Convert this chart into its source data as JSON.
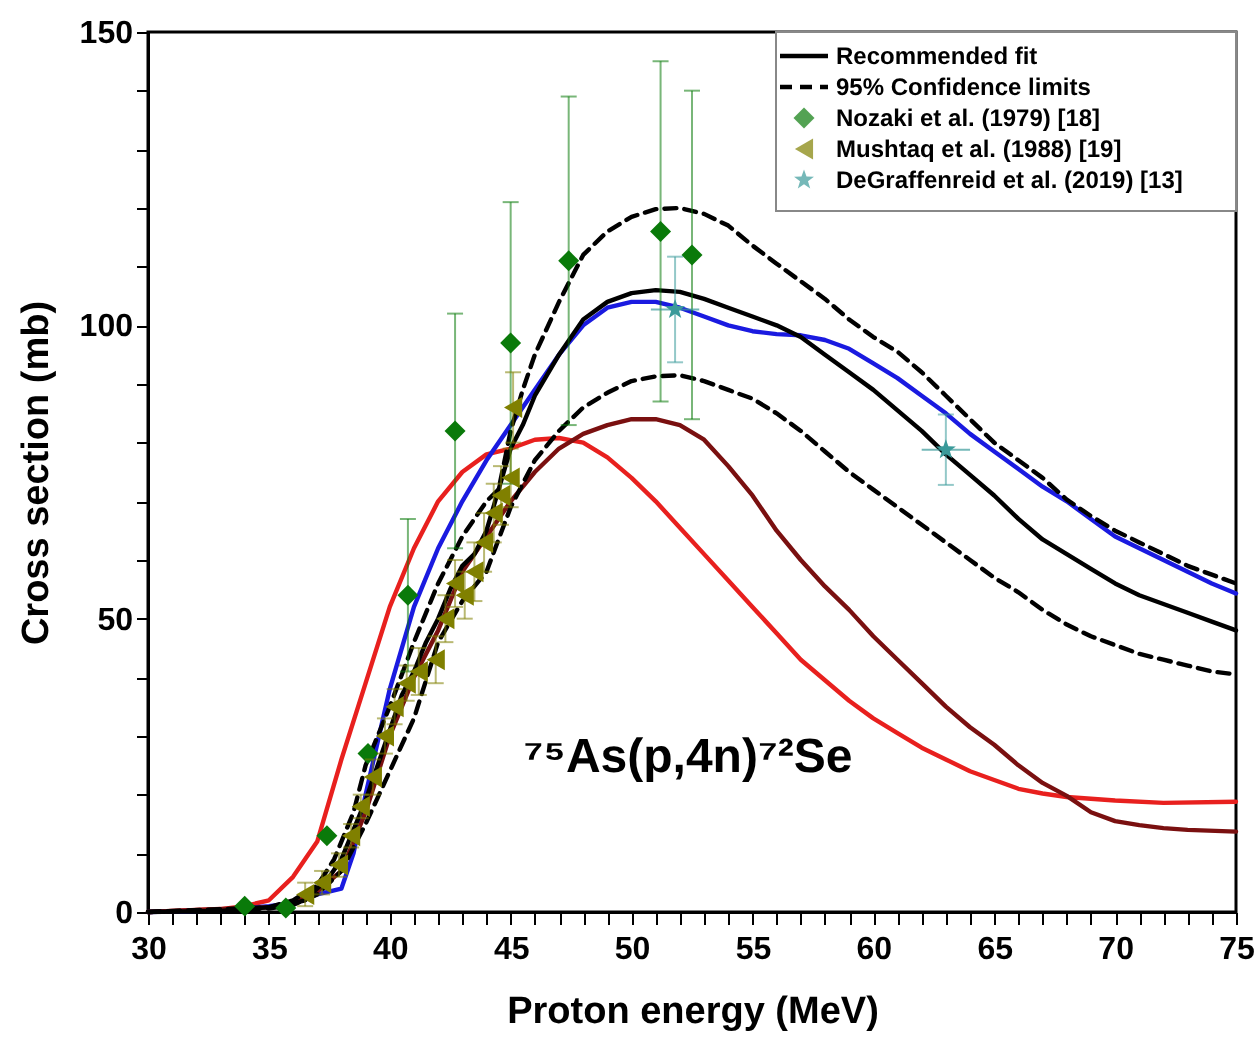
{
  "chart_data": {
    "type": "line",
    "xlabel": "Proton energy (MeV)",
    "ylabel": "Cross section (mb)",
    "xlim": [
      30,
      75
    ],
    "ylim": [
      0,
      150
    ],
    "xticks": [
      30,
      {
        "value": 31,
        "label": null
      },
      {
        "value": 32,
        "label": null
      },
      {
        "value": 33,
        "label": null
      },
      {
        "value": 34,
        "label": null
      },
      35,
      {
        "value": 36,
        "label": null
      },
      {
        "value": 37,
        "label": null
      },
      {
        "value": 38,
        "label": null
      },
      {
        "value": 39,
        "label": null
      },
      40,
      {
        "value": 41,
        "label": null
      },
      {
        "value": 42,
        "label": null
      },
      {
        "value": 43,
        "label": null
      },
      {
        "value": 44,
        "label": null
      },
      45,
      {
        "value": 46,
        "label": null
      },
      {
        "value": 47,
        "label": null
      },
      {
        "value": 48,
        "label": null
      },
      {
        "value": 49,
        "label": null
      },
      50,
      {
        "value": 51,
        "label": null
      },
      {
        "value": 52,
        "label": null
      },
      {
        "value": 53,
        "label": null
      },
      {
        "value": 54,
        "label": null
      },
      55,
      {
        "value": 56,
        "label": null
      },
      {
        "value": 57,
        "label": null
      },
      {
        "value": 58,
        "label": null
      },
      {
        "value": 59,
        "label": null
      },
      60,
      {
        "value": 61,
        "label": null
      },
      {
        "value": 62,
        "label": null
      },
      {
        "value": 63,
        "label": null
      },
      {
        "value": 64,
        "label": null
      },
      65,
      {
        "value": 66,
        "label": null
      },
      {
        "value": 67,
        "label": null
      },
      {
        "value": 68,
        "label": null
      },
      {
        "value": 69,
        "label": null
      },
      70,
      {
        "value": 71,
        "label": null
      },
      {
        "value": 72,
        "label": null
      },
      {
        "value": 73,
        "label": null
      },
      {
        "value": 74,
        "label": null
      },
      75
    ],
    "yticks": [
      0,
      {
        "value": 10,
        "label": null
      },
      {
        "value": 20,
        "label": null
      },
      {
        "value": 30,
        "label": null
      },
      {
        "value": 40,
        "label": null
      },
      50,
      {
        "value": 60,
        "label": null
      },
      {
        "value": 70,
        "label": null
      },
      {
        "value": 80,
        "label": null
      },
      {
        "value": 90,
        "label": null
      },
      100,
      {
        "value": 110,
        "label": null
      },
      {
        "value": 120,
        "label": null
      },
      {
        "value": 130,
        "label": null
      },
      {
        "value": 140,
        "label": null
      },
      150
    ],
    "grid": false,
    "legend": "top right",
    "annotations": [
      "⁷⁵As(p,4n)⁷²Se"
    ],
    "series": [
      {
        "type": "line",
        "color": "#e8201e",
        "line_style": "solid",
        "x": [
          30,
          33,
          34,
          35,
          36,
          37,
          38,
          39,
          40,
          41,
          42,
          43,
          44,
          45,
          46,
          47,
          48,
          49,
          50,
          51,
          52,
          53,
          54,
          55,
          56,
          57,
          58,
          59,
          60,
          61,
          62,
          63,
          64,
          65,
          66,
          67,
          68,
          70,
          72,
          75
        ],
        "values": [
          0,
          0.5,
          1,
          2,
          6,
          12,
          26,
          39,
          52,
          62,
          70,
          75,
          78,
          79,
          80.5,
          80.8,
          80,
          77.5,
          74,
          70,
          65.5,
          61,
          56.5,
          52,
          47.5,
          43,
          39.5,
          36,
          33,
          30.5,
          28,
          26,
          24,
          22.5,
          21,
          20.2,
          19.6,
          19,
          18.6,
          18.8
        ]
      },
      {
        "type": "line",
        "color": "#1a1ae0",
        "line_style": "solid",
        "x": [
          30,
          33,
          35,
          36,
          37,
          38,
          38.5,
          39,
          40,
          41,
          42,
          43,
          44,
          45,
          46,
          47,
          48,
          49,
          50,
          51,
          52,
          53,
          54,
          55,
          56,
          57,
          58,
          59,
          60,
          61,
          62,
          63,
          64,
          65,
          66,
          67,
          68,
          69,
          70,
          71,
          72,
          73,
          74,
          75
        ],
        "values": [
          0,
          0.3,
          1,
          1.5,
          3,
          4,
          10,
          20,
          38,
          52,
          62,
          70,
          77,
          83,
          89,
          95,
          100,
          103,
          104,
          104,
          103,
          101.5,
          100,
          99,
          98.5,
          98.3,
          97.5,
          96,
          93.5,
          91,
          88,
          85,
          81.5,
          78.5,
          75.5,
          72.5,
          70,
          67,
          64,
          62,
          60,
          58,
          56,
          54.3
        ]
      },
      {
        "type": "line",
        "color": "#7a1010",
        "line_style": "solid",
        "x": [
          30,
          35,
          36,
          37,
          38,
          39,
          40,
          41,
          42,
          43,
          44,
          45,
          46,
          47,
          48,
          49,
          50,
          51,
          52,
          53,
          54,
          55,
          56,
          57,
          58,
          59,
          60,
          61,
          62,
          63,
          64,
          65,
          66,
          67,
          68,
          69,
          70,
          71,
          72,
          73,
          75
        ],
        "values": [
          0,
          0.8,
          1.5,
          3.5,
          7,
          17,
          30,
          40,
          48,
          58,
          64,
          70,
          75,
          79,
          81.5,
          83,
          84,
          84,
          83,
          80.5,
          76,
          71,
          65,
          60,
          55.5,
          51.5,
          47,
          43,
          39,
          35,
          31.5,
          28.5,
          25,
          22,
          19.8,
          17,
          15.5,
          14.8,
          14.3,
          14,
          13.7
        ]
      },
      {
        "type": "line",
        "name": "Recommended fit",
        "color": "#000000",
        "line_style": "solid",
        "x": [
          30,
          33,
          35,
          36,
          36.5,
          37,
          37.5,
          38,
          39,
          39.5,
          40,
          40.5,
          41,
          41.5,
          42,
          42.5,
          43,
          43.5,
          44,
          44.5,
          45,
          45.5,
          46,
          47,
          48,
          49,
          50,
          51,
          52,
          53,
          54,
          55,
          56,
          57,
          58,
          59,
          60,
          61,
          62,
          63,
          64,
          65,
          66,
          67,
          68,
          69,
          70,
          71,
          72,
          73,
          74,
          75
        ],
        "values": [
          0,
          0.2,
          0.8,
          1.5,
          2,
          4,
          6,
          9,
          19,
          25,
          31,
          37,
          41,
          46,
          50,
          55,
          59,
          61,
          65,
          72,
          79,
          83,
          88,
          95,
          101,
          104,
          105.5,
          106,
          105.7,
          104.5,
          103,
          101.5,
          100,
          98,
          95,
          92,
          89,
          85.5,
          82,
          78,
          74.5,
          71,
          67,
          63.5,
          61,
          58.5,
          56,
          54,
          52.5,
          51,
          49.5,
          48
        ]
      },
      {
        "type": "line",
        "name": "95%  Confidence limits",
        "color": "#000000",
        "line_style": "dashed",
        "x": [
          30,
          35,
          36,
          37,
          37.7,
          38.5,
          39,
          40,
          41,
          42,
          43,
          44,
          44.5,
          45,
          45.5,
          46,
          47,
          48,
          49,
          50,
          51,
          52,
          53,
          54,
          55,
          56,
          57,
          58,
          59,
          60,
          61,
          62,
          63,
          64,
          65,
          66,
          67,
          68,
          69,
          70,
          71,
          72,
          73,
          74,
          75
        ],
        "values": [
          0,
          0.8,
          2,
          4.5,
          9,
          17,
          25,
          35,
          46,
          56,
          64,
          70,
          72,
          82,
          89,
          95,
          104,
          112,
          116,
          118.5,
          119.8,
          120,
          119,
          117,
          113.6,
          110.5,
          107.5,
          104.5,
          101,
          98,
          95.5,
          92,
          88,
          84,
          80,
          77,
          74,
          70.3,
          67.5,
          65,
          63,
          61,
          59,
          57.5,
          56
        ]
      },
      {
        "type": "line",
        "color": "#000000",
        "line_style": "dashed",
        "x": [
          30,
          35,
          36,
          37,
          38,
          39,
          40,
          41,
          42,
          43,
          44,
          45,
          46,
          47,
          48,
          49,
          50,
          51,
          52,
          53,
          54,
          55,
          56,
          57,
          58,
          59,
          60,
          61,
          62,
          63,
          64,
          65,
          66,
          67,
          68,
          69,
          70,
          71,
          72,
          73,
          74,
          75
        ],
        "values": [
          0,
          0.6,
          1.2,
          3,
          7,
          15,
          24,
          33,
          46,
          53,
          58,
          69,
          77,
          82,
          86,
          88.5,
          90.5,
          91.3,
          91.5,
          90.5,
          89,
          87.5,
          85,
          82,
          78.5,
          75,
          72,
          69,
          66,
          63,
          60,
          57,
          54.5,
          51.5,
          49,
          47,
          45.5,
          44,
          43,
          42,
          41,
          40.5
        ]
      },
      {
        "type": "scatter",
        "name": "Nozaki et al. (1979)      [18]",
        "color": "#0a7a0a",
        "marker": "diamond",
        "x": [
          34.0,
          35.7,
          37.4,
          39.1,
          40.75,
          42.7,
          45.0,
          47.4,
          51.2,
          52.5
        ],
        "values": [
          1,
          0.7,
          13,
          27,
          54,
          82,
          97,
          111,
          116,
          112
        ],
        "errors": [
          null,
          null,
          null,
          null,
          13,
          20,
          24,
          28,
          29,
          28
        ]
      },
      {
        "type": "scatter",
        "name": "Mushtaq et al. (1988)      [19]",
        "color": "#808000",
        "marker": "triangle",
        "x": [
          36.5,
          37.2,
          37.9,
          38.4,
          38.8,
          39.3,
          39.8,
          40.2,
          40.7,
          41.2,
          41.9,
          42.3,
          42.7,
          43.1,
          43.5,
          43.9,
          44.3,
          44.6,
          45.0,
          45.1
        ],
        "values": [
          3,
          5,
          8,
          13,
          18,
          23,
          30,
          35,
          39,
          41,
          43,
          50,
          56,
          54,
          58,
          63,
          68,
          71,
          74,
          86
        ],
        "errors": [
          2,
          2,
          2,
          2,
          2,
          3,
          3,
          3,
          3,
          4,
          4,
          4,
          4,
          4,
          5,
          5,
          5,
          5,
          5,
          6
        ]
      },
      {
        "type": "scatter",
        "name": "DeGraffenreid et al. (2019) [13]",
        "color": "#3a9a9a",
        "marker": "star",
        "x": [
          51.8,
          63.0
        ],
        "values": [
          102.7,
          78.8
        ],
        "errors": [
          9,
          6
        ],
        "xerrors": [
          1,
          1
        ]
      }
    ]
  }
}
